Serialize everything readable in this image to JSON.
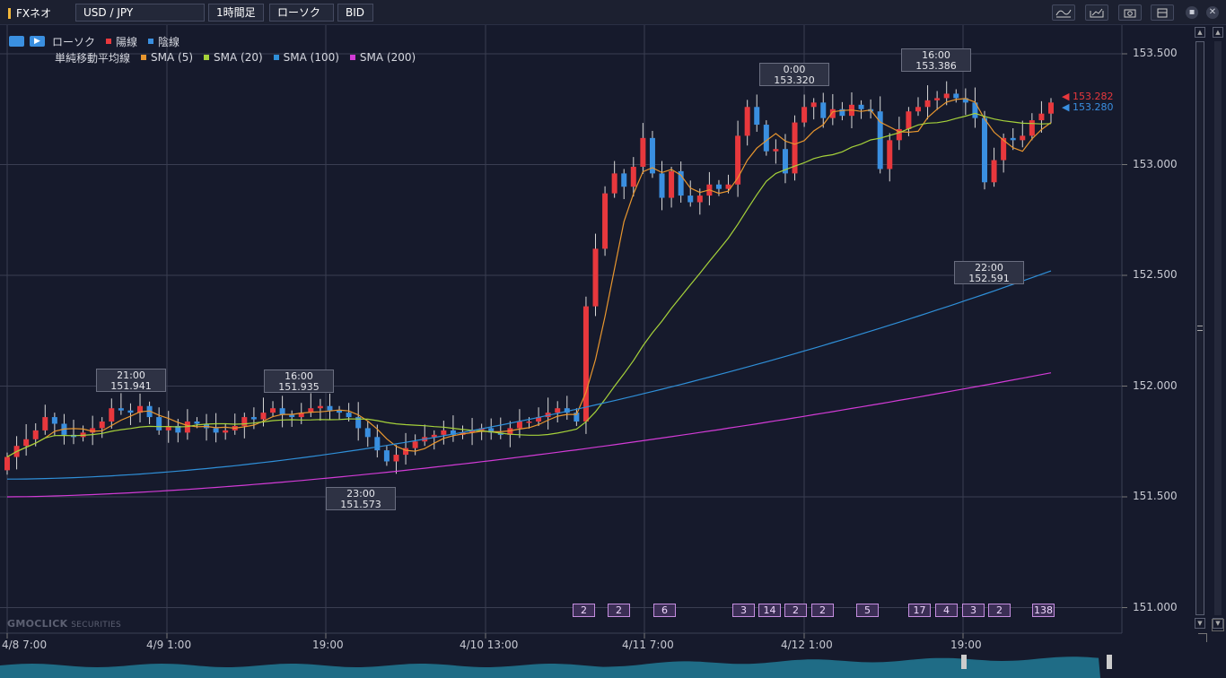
{
  "app_title": "FXネオ",
  "toolbar": {
    "symbol": "USD / JPY",
    "timeframe": "1時間足",
    "chart_type": "ローソク",
    "price_type": "BID",
    "icons": [
      "indicator-icon",
      "export-chart-icon",
      "camera-icon",
      "window-icon",
      "minimize-icon",
      "close-icon"
    ]
  },
  "legend": {
    "row1": {
      "main": "ローソク",
      "bull": "陽線",
      "bear": "陰線"
    },
    "row2": {
      "main": "単純移動平均線",
      "items": [
        {
          "label": "SMA (5)",
          "color": "#e8962e"
        },
        {
          "label": "SMA (20)",
          "color": "#a6d23a"
        },
        {
          "label": "SMA (100)",
          "color": "#2f8fd8"
        },
        {
          "label": "SMA (200)",
          "color": "#d23bd6"
        }
      ]
    },
    "bull_color": "#e8383d",
    "bear_color": "#3a8fe0"
  },
  "price_axis": [
    "153.500",
    "153.000",
    "152.500",
    "152.000",
    "151.500",
    "151.000"
  ],
  "current": {
    "bid_red": "153.282",
    "bid_blue": "153.280"
  },
  "time_axis": [
    "4/8 7:00",
    "4/9 1:00",
    "19:00",
    "4/10 13:00",
    "4/11 7:00",
    "4/12 1:00",
    "19:00"
  ],
  "hilo": [
    {
      "time": "21:00",
      "price": "151.941"
    },
    {
      "time": "16:00",
      "price": "151.935"
    },
    {
      "time": "23:00",
      "price": "151.573"
    },
    {
      "time": "0:00",
      "price": "153.320"
    },
    {
      "time": "16:00",
      "price": "153.386"
    },
    {
      "time": "22:00",
      "price": "152.591"
    }
  ],
  "events": [
    "2",
    "2",
    "6",
    "3",
    "14",
    "2",
    "2",
    "5",
    "17",
    "4",
    "3",
    "2",
    "138"
  ],
  "watermark": {
    "brand": "GMOCLICK",
    "sub": "SECURITIES"
  },
  "chart_data": {
    "type": "candlestick",
    "interval": "1h",
    "y_range": [
      150.9,
      153.55
    ],
    "close": [
      151.68,
      151.73,
      151.76,
      151.8,
      151.86,
      151.83,
      151.78,
      151.77,
      151.79,
      151.81,
      151.84,
      151.9,
      151.89,
      151.88,
      151.91,
      151.86,
      151.8,
      151.82,
      151.79,
      151.84,
      151.83,
      151.81,
      151.79,
      151.8,
      151.82,
      151.86,
      151.85,
      151.88,
      151.9,
      151.87,
      151.86,
      151.88,
      151.9,
      151.91,
      151.89,
      151.88,
      151.86,
      151.81,
      151.77,
      151.71,
      151.66,
      151.69,
      151.72,
      151.75,
      151.77,
      151.78,
      151.8,
      151.78,
      151.79,
      151.8,
      151.81,
      151.79,
      151.78,
      151.81,
      151.84,
      151.84,
      151.86,
      151.88,
      151.9,
      151.88,
      151.84,
      152.36,
      152.62,
      152.87,
      152.96,
      152.9,
      152.99,
      153.12,
      152.96,
      152.85,
      152.97,
      152.86,
      152.83,
      152.86,
      152.91,
      152.89,
      152.91,
      153.13,
      153.26,
      153.18,
      153.06,
      153.07,
      152.96,
      153.19,
      153.26,
      153.28,
      153.21,
      153.25,
      153.22,
      153.27,
      153.25,
      153.24,
      152.98,
      153.11,
      153.16,
      153.24,
      153.26,
      153.29,
      153.3,
      153.32,
      153.3,
      153.28,
      153.21,
      152.92,
      153.02,
      153.12,
      153.11,
      153.13,
      153.2,
      153.23,
      153.28
    ],
    "sma_5_end": 153.15,
    "sma_20_end": 153.17,
    "sma_100_end": 152.52,
    "sma_200_end": 152.06
  }
}
